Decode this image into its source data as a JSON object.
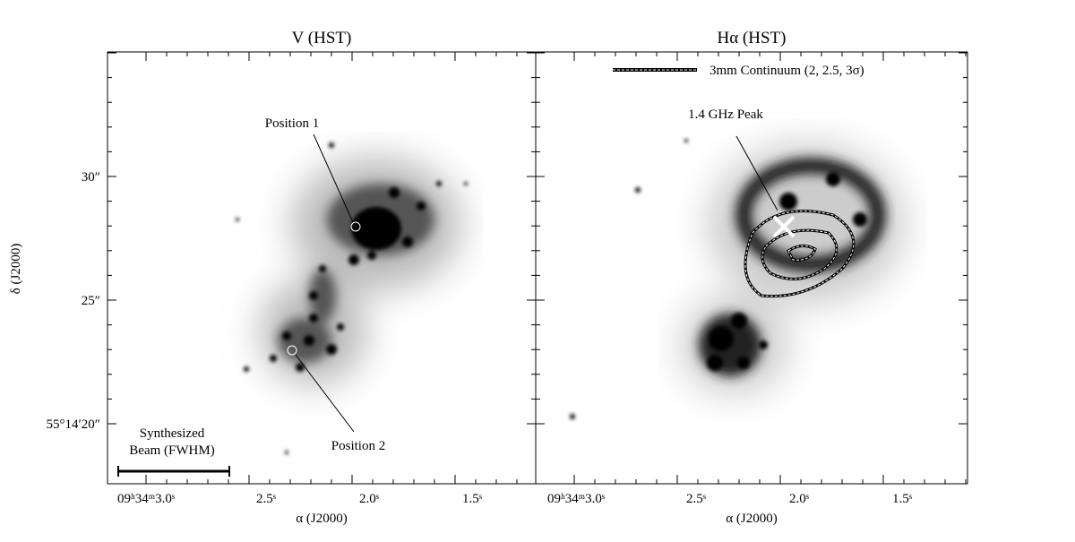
{
  "panels": [
    {
      "title": "V (HST)",
      "annotations": [
        "Position 1",
        "Position 2",
        "Synthesized",
        "Beam (FWHM)"
      ]
    },
    {
      "title": "Hα (HST)",
      "annotations": [
        "3mm Continuum (2, 2.5, 3σ)",
        "1.4 GHz Peak"
      ]
    }
  ],
  "x_tick_labels": [
    "09ʰ34ᵐ3.0ˢ",
    "2.5ˢ",
    "2.0ˢ",
    "1.5ˢ"
  ],
  "y_tick_labels": [
    "30″",
    "25″",
    "55°14′20″"
  ],
  "x_axis_label": "α (J2000)",
  "y_axis_label": "δ (J2000)"
}
